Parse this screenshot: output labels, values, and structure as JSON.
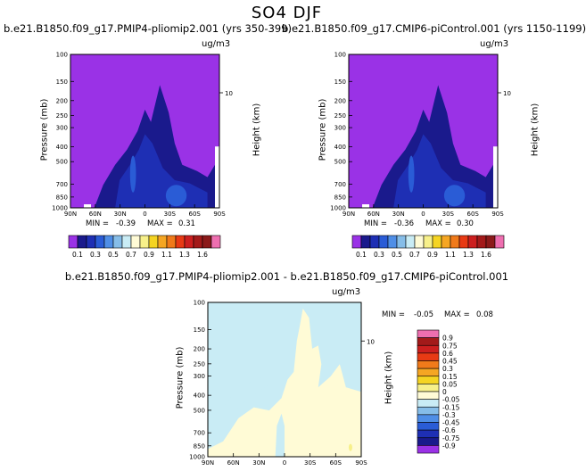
{
  "figure": {
    "title": "SO4 DJF",
    "units": "ug/m3",
    "colors": {
      "background": "#ffffff",
      "frame": "#000000"
    }
  },
  "chart_data": [
    {
      "type": "heatmap",
      "title": "b.e21.B1850.f09_g17.PMIP4-pliomip2.001 (yrs 350-399)",
      "units": "ug/m3",
      "xlabel": "",
      "ylabel": "Pressure (mb)",
      "y2label": "Height (km)",
      "x_ticks": [
        "90N",
        "60N",
        "30N",
        "0",
        "30S",
        "60S",
        "90S"
      ],
      "y_ticks": [
        100,
        150,
        200,
        250,
        300,
        400,
        500,
        700,
        850,
        1000
      ],
      "y2_ticks": [
        10
      ],
      "min_label": "MIN = ",
      "min": "-0.39",
      "max_label": "MAX = ",
      "max": "0.31",
      "colorbar_labels": [
        "0.1",
        "0.3",
        "0.5",
        "0.7",
        "0.9",
        "1.1",
        "1.3",
        "1.6"
      ],
      "colorbar_colors": [
        "#9a32e6",
        "#1a1a8c",
        "#1e2fb4",
        "#2a5cd6",
        "#4f8ee6",
        "#86bde8",
        "#c9ecf5",
        "#fffbd6",
        "#f7f08a",
        "#f5d422",
        "#f5a623",
        "#f07a1a",
        "#e83a14",
        "#cc1f1f",
        "#a31a1a",
        "#8b1a1a",
        "#ee6fb0"
      ],
      "background_level": "0.1"
    },
    {
      "type": "heatmap",
      "title": "b.e21.B1850.f09_g17.CMIP6-piControl.001 (yrs 1150-1199)",
      "units": "ug/m3",
      "xlabel": "",
      "ylabel": "Pressure (mb)",
      "y2label": "Height (km)",
      "x_ticks": [
        "90N",
        "60N",
        "30N",
        "0",
        "30S",
        "60S",
        "90S"
      ],
      "y_ticks": [
        100,
        150,
        200,
        250,
        300,
        400,
        500,
        700,
        850,
        1000
      ],
      "y2_ticks": [
        10
      ],
      "min_label": "MIN = ",
      "min": "-0.36",
      "max_label": "MAX = ",
      "max": "0.30",
      "colorbar_labels": [
        "0.1",
        "0.3",
        "0.5",
        "0.7",
        "0.9",
        "1.1",
        "1.3",
        "1.6"
      ],
      "colorbar_colors": [
        "#9a32e6",
        "#1a1a8c",
        "#1e2fb4",
        "#2a5cd6",
        "#4f8ee6",
        "#86bde8",
        "#c9ecf5",
        "#fffbd6",
        "#f7f08a",
        "#f5d422",
        "#f5a623",
        "#f07a1a",
        "#e83a14",
        "#cc1f1f",
        "#a31a1a",
        "#8b1a1a",
        "#ee6fb0"
      ],
      "background_level": "0.1"
    },
    {
      "type": "heatmap",
      "title": "b.e21.B1850.f09_g17.PMIP4-pliomip2.001 - b.e21.B1850.f09_g17.CMIP6-piControl.001",
      "units": "ug/m3",
      "xlabel": "",
      "ylabel": "Pressure (mb)",
      "y2label": "Height (km)",
      "x_ticks": [
        "90N",
        "60N",
        "30N",
        "0",
        "30S",
        "60S",
        "90S"
      ],
      "y_ticks": [
        100,
        150,
        200,
        250,
        300,
        400,
        500,
        700,
        850,
        1000
      ],
      "y2_ticks": [
        10
      ],
      "min_label": "MIN = ",
      "min": "-0.05",
      "max_label": "MAX = ",
      "max": "0.08",
      "colorbar_labels": [
        "0.9",
        "0.75",
        "0.6",
        "0.45",
        "0.3",
        "0.15",
        "0.05",
        "0",
        "-0.05",
        "-0.15",
        "-0.3",
        "-0.45",
        "-0.6",
        "-0.75",
        "-0.9"
      ],
      "colorbar_colors": [
        "#ee6fb0",
        "#a31a1a",
        "#cc1f1f",
        "#e83a14",
        "#f07a1a",
        "#f5a623",
        "#f5d422",
        "#f7f08a",
        "#fffbd6",
        "#c9ecf5",
        "#86bde8",
        "#4f8ee6",
        "#2a5cd6",
        "#1e2fb4",
        "#1a1a8c",
        "#9a32e6"
      ]
    }
  ]
}
